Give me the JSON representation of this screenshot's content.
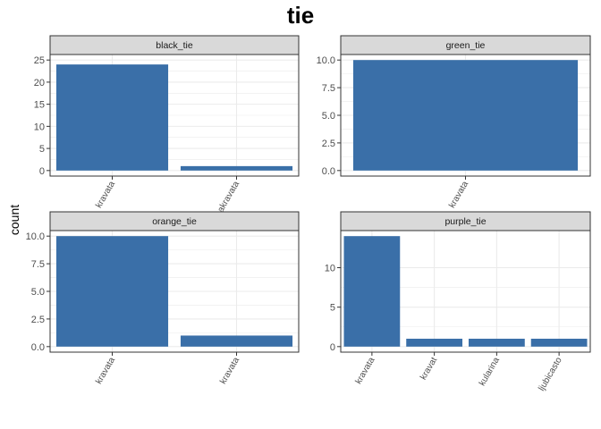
{
  "title": "tie",
  "ylabel": "count",
  "colors": {
    "bar": "#3A6FA8",
    "strip": "#D9D9D9",
    "grid": "#EBEBEB",
    "border": "#333333"
  },
  "chart_data": [
    {
      "type": "bar",
      "facet": "black_tie",
      "categories": [
        "kravata",
        "crnakravata"
      ],
      "values": [
        24,
        1
      ],
      "ylim": [
        0,
        25
      ],
      "yticks": [
        0,
        5,
        10,
        15,
        20,
        25
      ],
      "ytick_labels": [
        "0",
        "5",
        "10",
        "15",
        "20",
        "25"
      ]
    },
    {
      "type": "bar",
      "facet": "green_tie",
      "categories": [
        "kravata"
      ],
      "values": [
        10
      ],
      "ylim": [
        0,
        10
      ],
      "yticks": [
        0,
        2.5,
        5,
        7.5,
        10
      ],
      "ytick_labels": [
        "0.0",
        "2.5",
        "5.0",
        "7.5",
        "10.0"
      ]
    },
    {
      "type": "bar",
      "facet": "orange_tie",
      "categories": [
        "kravata",
        "kravata"
      ],
      "values": [
        10,
        1
      ],
      "ylim": [
        0,
        10
      ],
      "yticks": [
        0,
        2.5,
        5,
        7.5,
        10
      ],
      "ytick_labels": [
        "0.0",
        "2.5",
        "5.0",
        "7.5",
        "10.0"
      ]
    },
    {
      "type": "bar",
      "facet": "purple_tie",
      "categories": [
        "kravata",
        "kravat",
        "kularina",
        "ljubicasto"
      ],
      "values": [
        14,
        1,
        1,
        1
      ],
      "ylim": [
        0,
        14
      ],
      "yticks": [
        0,
        5,
        10
      ],
      "ytick_labels": [
        "0",
        "5",
        "10"
      ]
    }
  ]
}
